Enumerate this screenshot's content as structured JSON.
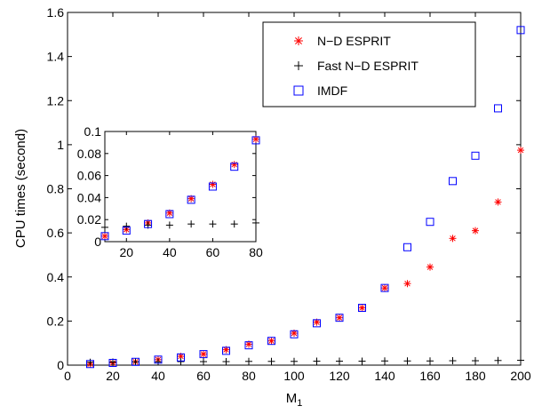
{
  "chart_data": [
    {
      "id": "main",
      "type": "scatter",
      "title": "",
      "xlabel": "M",
      "xlabel_sub": "1",
      "ylabel": "CPU times (second)",
      "xlim": [
        0,
        200
      ],
      "ylim": [
        0,
        1.6
      ],
      "xticks": [
        0,
        20,
        40,
        60,
        80,
        100,
        120,
        140,
        160,
        180,
        200
      ],
      "yticks": [
        0,
        0.2,
        0.4,
        0.6,
        0.8,
        1,
        1.2,
        1.4,
        1.6
      ],
      "xtick_labels": [
        "0",
        "20",
        "40",
        "60",
        "80",
        "100",
        "120",
        "140",
        "160",
        "180",
        "200"
      ],
      "ytick_labels": [
        "0",
        "0.2",
        "0.4",
        "0.6",
        "0.8",
        "1",
        "1.2",
        "1.4",
        "1.6"
      ],
      "grid": false,
      "legend_position": "top-right",
      "series": [
        {
          "name": "N−D ESPRIT",
          "marker": "asterisk",
          "color": "#ff0000",
          "x": [
            10,
            20,
            30,
            40,
            50,
            60,
            70,
            80,
            90,
            100,
            110,
            120,
            130,
            140,
            150,
            160,
            170,
            180,
            190,
            200
          ],
          "y": [
            0.005,
            0.01,
            0.015,
            0.025,
            0.04,
            0.05,
            0.07,
            0.095,
            0.11,
            0.145,
            0.195,
            0.215,
            0.26,
            0.35,
            0.37,
            0.445,
            0.575,
            0.61,
            0.74,
            0.975
          ]
        },
        {
          "name": "Fast N−D ESPRIT",
          "marker": "plus",
          "color": "#000000",
          "x": [
            10,
            20,
            30,
            40,
            50,
            60,
            70,
            80,
            90,
            100,
            110,
            120,
            130,
            140,
            150,
            160,
            170,
            180,
            190,
            200
          ],
          "y": [
            0.013,
            0.014,
            0.015,
            0.015,
            0.016,
            0.016,
            0.016,
            0.017,
            0.017,
            0.017,
            0.018,
            0.018,
            0.018,
            0.019,
            0.019,
            0.019,
            0.02,
            0.02,
            0.021,
            0.022
          ]
        },
        {
          "name": "IMDF",
          "marker": "square",
          "color": "#0000ff",
          "x": [
            10,
            20,
            30,
            40,
            50,
            60,
            70,
            80,
            90,
            100,
            110,
            120,
            130,
            140,
            150,
            160,
            170,
            180,
            190,
            200
          ],
          "y": [
            0.005,
            0.01,
            0.015,
            0.025,
            0.035,
            0.05,
            0.065,
            0.09,
            0.11,
            0.14,
            0.19,
            0.215,
            0.26,
            0.35,
            0.535,
            0.65,
            0.835,
            0.95,
            1.165,
            1.52
          ]
        }
      ]
    },
    {
      "id": "inset",
      "type": "scatter",
      "title": "",
      "xlabel": "",
      "ylabel": "",
      "xlim": [
        10,
        80
      ],
      "ylim": [
        0,
        0.1
      ],
      "xticks": [
        20,
        40,
        60,
        80
      ],
      "yticks": [
        0,
        0.02,
        0.04,
        0.06,
        0.08,
        0.1
      ],
      "xtick_labels": [
        "20",
        "40",
        "60",
        "80"
      ],
      "ytick_labels": [
        "0",
        "0.02",
        "0.04",
        "0.06",
        "0.08",
        "0.1"
      ],
      "grid": false,
      "series": [
        {
          "name": "",
          "marker": "asterisk",
          "color": "#ff0000",
          "x": [
            10,
            20,
            30,
            40,
            50,
            60,
            70,
            80
          ],
          "y": [
            0.005,
            0.011,
            0.017,
            0.026,
            0.039,
            0.052,
            0.07,
            0.093
          ]
        },
        {
          "name": "",
          "marker": "plus",
          "color": "#000000",
          "x": [
            10,
            20,
            30,
            40,
            50,
            60,
            70,
            80
          ],
          "y": [
            0.013,
            0.014,
            0.015,
            0.015,
            0.016,
            0.016,
            0.016,
            0.017
          ]
        },
        {
          "name": "",
          "marker": "square",
          "color": "#0000ff",
          "x": [
            10,
            20,
            30,
            40,
            50,
            60,
            70,
            80
          ],
          "y": [
            0.005,
            0.01,
            0.016,
            0.025,
            0.038,
            0.05,
            0.068,
            0.092
          ]
        }
      ]
    }
  ]
}
